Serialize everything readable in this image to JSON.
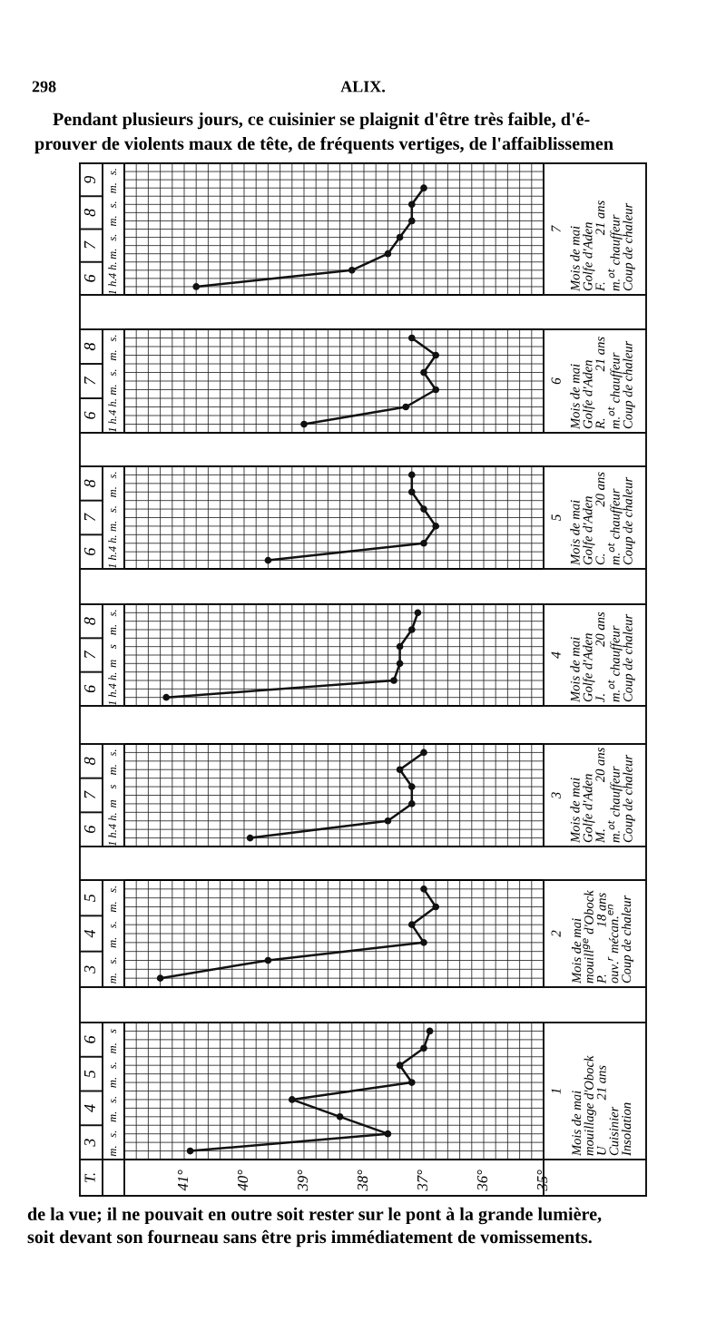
{
  "chart_data": [
    {
      "type": "line",
      "orientation": "horizontal",
      "categories": [
        "s.",
        "m.",
        "s.",
        "m.",
        "s.",
        "m.",
        "4 h.",
        "1 h."
      ],
      "values": [
        null,
        37.0,
        37.2,
        37.2,
        37.4,
        37.6,
        38.2,
        40.8
      ],
      "color": "#111111",
      "marker": "circle",
      "line_style": "solid",
      "grid": true,
      "tick_labels": "y",
      "xlim": [
        42,
        35
      ],
      "xticks": [
        42,
        41.8,
        41.6,
        41.4,
        41.2,
        41,
        40.8,
        40.6,
        40.4,
        40.2,
        40,
        39.8,
        39.6,
        39.4,
        39.2,
        39,
        38.8,
        38.6,
        38.4,
        38.2,
        38,
        37.8,
        37.6,
        37.4,
        37.2,
        37,
        36.8,
        36.6,
        36.4,
        36.2,
        36,
        35.8,
        35.6,
        35.4,
        35.2,
        35
      ],
      "annotations": [
        "9",
        "8",
        "7",
        "6",
        "7",
        "Mois de mai\nGolfe d'Aden\nF.              21 ans\nm.$^{ot}$ chauffeur\nCoup de chaleur",
        "298",
        "ALIX.",
        "Pendant plusieurs jours, ce cuisinier se plaignit d'être très faible, d'é-\nprouver de violents maux de tête, de fréquents vertiges, de l'affaiblissemen"
      ]
    },
    {
      "type": "line",
      "orientation": "horizontal",
      "categories": [
        "s.",
        "m.",
        "s.",
        "m.",
        "4 h.",
        "1 h."
      ],
      "values": [
        37.2,
        36.8,
        37.0,
        36.8,
        37.3,
        39.0
      ],
      "color": "#111111",
      "marker": "circle",
      "line_style": "solid",
      "grid": true,
      "tick_labels": "y",
      "xlim": [
        42,
        35
      ],
      "xticks": [
        42,
        41.8,
        41.6,
        41.4,
        41.2,
        41,
        40.8,
        40.6,
        40.4,
        40.2,
        40,
        39.8,
        39.6,
        39.4,
        39.2,
        39,
        38.8,
        38.6,
        38.4,
        38.2,
        38,
        37.8,
        37.6,
        37.4,
        37.2,
        37,
        36.8,
        36.6,
        36.4,
        36.2,
        36,
        35.8,
        35.6,
        35.4,
        35.2,
        35
      ],
      "annotations": [
        "8",
        "7",
        "6",
        "6",
        "Mois de mai\nGolfe d'Aden\nR.              21 ans\nm.$^{ot}$ chauffeur\nCoup de chaleur"
      ]
    },
    {
      "type": "line",
      "orientation": "horizontal",
      "categories": [
        "s.",
        "m.",
        "s.",
        "m.",
        "4 h.",
        "1 h."
      ],
      "values": [
        37.2,
        37.2,
        37.0,
        36.8,
        37.0,
        39.6
      ],
      "color": "#111111",
      "marker": "circle",
      "line_style": "solid",
      "grid": true,
      "tick_labels": "y",
      "xlim": [
        42,
        35
      ],
      "xticks": [
        42,
        41.8,
        41.6,
        41.4,
        41.2,
        41,
        40.8,
        40.6,
        40.4,
        40.2,
        40,
        39.8,
        39.6,
        39.4,
        39.2,
        39,
        38.8,
        38.6,
        38.4,
        38.2,
        38,
        37.8,
        37.6,
        37.4,
        37.2,
        37,
        36.8,
        36.6,
        36.4,
        36.2,
        36,
        35.8,
        35.6,
        35.4,
        35.2,
        35
      ],
      "annotations": [
        "8",
        "7",
        "6",
        "5",
        "Mois de mai\nGolfe d'Aden\nC.              20 ans\nm.$^{ot}$ chauffeur\nCoup de chaleur"
      ]
    },
    {
      "type": "line",
      "orientation": "horizontal",
      "categories": [
        "s.",
        "m.",
        "s",
        "m",
        "4 h.",
        "1 h."
      ],
      "values": [
        37.1,
        37.2,
        37.4,
        37.4,
        37.5,
        41.3
      ],
      "color": "#111111",
      "marker": "circle",
      "line_style": "solid",
      "grid": true,
      "tick_labels": "y",
      "xlim": [
        42,
        35
      ],
      "xticks": [
        42,
        41.8,
        41.6,
        41.4,
        41.2,
        41,
        40.8,
        40.6,
        40.4,
        40.2,
        40,
        39.8,
        39.6,
        39.4,
        39.2,
        39,
        38.8,
        38.6,
        38.4,
        38.2,
        38,
        37.8,
        37.6,
        37.4,
        37.2,
        37,
        36.8,
        36.6,
        36.4,
        36.2,
        36,
        35.8,
        35.6,
        35.4,
        35.2,
        35
      ],
      "annotations": [
        "8",
        "7",
        "6",
        "4",
        "Mois de mai\nGolfe d'Aden\nJ.              20 ans\nm.$^{ot}$ chauffeur\nCoup de chaleur"
      ]
    },
    {
      "type": "line",
      "orientation": "horizontal",
      "categories": [
        "s.",
        "m.",
        "s",
        "m",
        "4 h.",
        "1 h."
      ],
      "values": [
        37.0,
        37.4,
        37.2,
        37.2,
        37.6,
        39.9
      ],
      "color": "#111111",
      "marker": "circle",
      "line_style": "solid",
      "grid": true,
      "tick_labels": "y",
      "xlim": [
        42,
        35
      ],
      "xticks": [
        42,
        41.8,
        41.6,
        41.4,
        41.2,
        41,
        40.8,
        40.6,
        40.4,
        40.2,
        40,
        39.8,
        39.6,
        39.4,
        39.2,
        39,
        38.8,
        38.6,
        38.4,
        38.2,
        38,
        37.8,
        37.6,
        37.4,
        37.2,
        37,
        36.8,
        36.6,
        36.4,
        36.2,
        36,
        35.8,
        35.6,
        35.4,
        35.2,
        35
      ],
      "annotations": [
        "8",
        "7",
        "6",
        "3",
        "Mois de mai\nGolfe d'Aden\nM.              20 ans\nm.$^{ot}$ chauffeur\nCoup de chaleur"
      ]
    },
    {
      "type": "line",
      "orientation": "horizontal",
      "categories": [
        "s.",
        "m.",
        "s.",
        "m.",
        "s.",
        "m."
      ],
      "values": [
        37.0,
        36.8,
        37.2,
        37.0,
        39.6,
        41.4
      ],
      "color": "#111111",
      "marker": "circle",
      "line_style": "solid",
      "grid": true,
      "tick_labels": "y",
      "xlim": [
        42,
        35
      ],
      "xticks": [
        42,
        41.8,
        41.6,
        41.4,
        41.2,
        41,
        40.8,
        40.6,
        40.4,
        40.2,
        40,
        39.8,
        39.6,
        39.4,
        39.2,
        39,
        38.8,
        38.6,
        38.4,
        38.2,
        38,
        37.8,
        37.6,
        37.4,
        37.2,
        37,
        36.8,
        36.6,
        36.4,
        36.2,
        36,
        35.8,
        35.6,
        35.4,
        35.2,
        35
      ],
      "annotations": [
        "5",
        "4",
        "3",
        "2",
        "Mois de mai\nmouill$^{ge}$ d'Obock\nP.              18 ans\nouv.$^{r}$ mécan.$^{en}$\nCoup de chaleur"
      ]
    },
    {
      "type": "line",
      "orientation": "horizontal",
      "categories": [
        "s",
        "m.",
        "s.",
        "m.",
        "s.",
        "m.",
        "s.",
        "m."
      ],
      "values": [
        36.9,
        37.0,
        37.4,
        37.2,
        39.2,
        38.4,
        37.6,
        40.9
      ],
      "color": "#111111",
      "marker": "circle",
      "line_style": "solid",
      "grid": true,
      "xlim": [
        42,
        35
      ],
      "xticks": [
        {
          "value": 42,
          "label": null
        },
        {
          "value": 41.8,
          "label": null
        },
        {
          "value": 41.6,
          "label": null
        },
        {
          "value": 41.4,
          "label": null
        },
        {
          "value": 41.2,
          "label": null
        },
        {
          "value": 41,
          "label": "41°"
        },
        {
          "value": 40.8,
          "label": null
        },
        {
          "value": 40.6,
          "label": null
        },
        {
          "value": 40.4,
          "label": null
        },
        {
          "value": 40.2,
          "label": null
        },
        {
          "value": 40,
          "label": "40°"
        },
        {
          "value": 39.8,
          "label": null
        },
        {
          "value": 39.6,
          "label": null
        },
        {
          "value": 39.4,
          "label": null
        },
        {
          "value": 39.2,
          "label": null
        },
        {
          "value": 39,
          "label": "39°"
        },
        {
          "value": 38.8,
          "label": null
        },
        {
          "value": 38.6,
          "label": null
        },
        {
          "value": 38.4,
          "label": null
        },
        {
          "value": 38.2,
          "label": null
        },
        {
          "value": 38,
          "label": "38°"
        },
        {
          "value": 37.8,
          "label": null
        },
        {
          "value": 37.6,
          "label": null
        },
        {
          "value": 37.4,
          "label": null
        },
        {
          "value": 37.2,
          "label": null
        },
        {
          "value": 37,
          "label": "37°"
        },
        {
          "value": 36.8,
          "label": null
        },
        {
          "value": 36.6,
          "label": null
        },
        {
          "value": 36.4,
          "label": null
        },
        {
          "value": 36.2,
          "label": null
        },
        {
          "value": 36,
          "label": "36°"
        },
        {
          "value": 35.8,
          "label": null
        },
        {
          "value": 35.6,
          "label": null
        },
        {
          "value": 35.4,
          "label": null
        },
        {
          "value": 35.2,
          "label": null
        },
        {
          "value": 35,
          "label": "35°"
        }
      ],
      "annotations": [
        "6",
        "5",
        "4",
        "3",
        "1",
        "Mois de mai\nmouillage d'Obock\nU              21 ans\nCuisinier\nInsolation",
        "T.",
        "de la vue; il ne pouvait en outre soit rester sur le pont à la grande lumière,\nsoit devant son fourneau sans être pris immédiatement de vomissements."
      ]
    }
  ]
}
